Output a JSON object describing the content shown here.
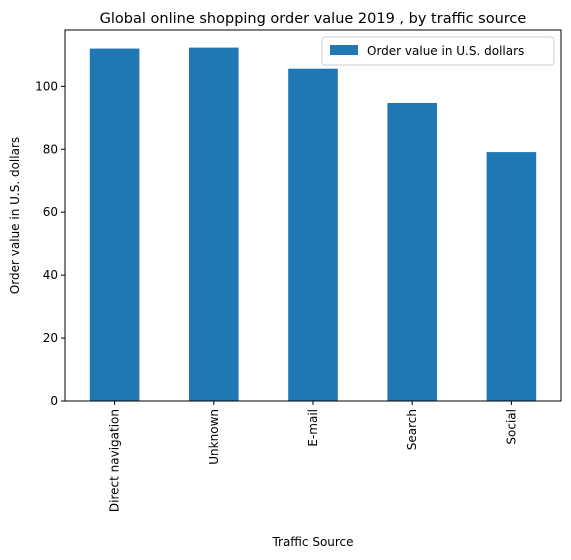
{
  "chart_data": {
    "type": "bar",
    "title": "Global online shopping order value 2019 , by traffic source",
    "xlabel": "Traffic Source",
    "ylabel": "Order value in U.S. dollars",
    "categories": [
      "Direct navigation",
      "Unknown",
      "E-mail",
      "Search",
      "Social"
    ],
    "series": [
      {
        "name": "Order value in U.S. dollars",
        "values": [
          112.0,
          112.3,
          105.6,
          94.7,
          79.1
        ]
      }
    ],
    "ylim": [
      0,
      117.9
    ],
    "yticks": [
      0,
      20,
      40,
      60,
      80,
      100
    ],
    "grid": false,
    "legend_position": "top-right",
    "colors": {
      "bar": "#1f77b4",
      "axis": "#000000",
      "background": "#ffffff"
    }
  }
}
